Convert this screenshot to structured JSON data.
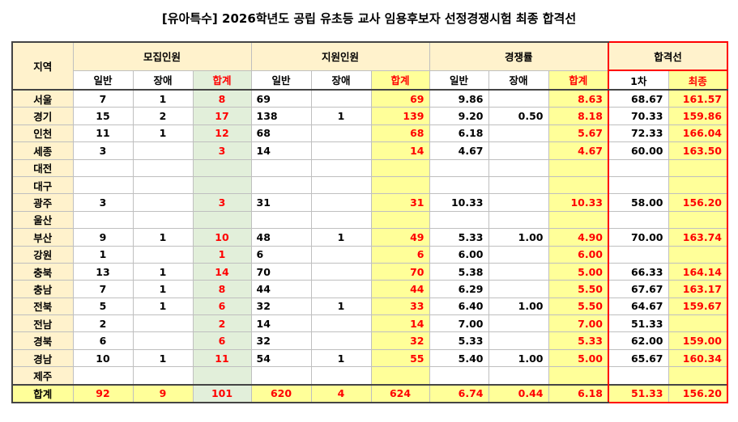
{
  "title": "[유아특수] 2026학년도 공립 유초등 교사 임용후보자 선정경쟁시험 최종 합격선",
  "header": {
    "region": "지역",
    "groups": [
      "모집인원",
      "지원인원",
      "경쟁률",
      "합격선"
    ],
    "sub": [
      "일반",
      "장애",
      "합계",
      "일반",
      "장애",
      "합계",
      "일반",
      "장애",
      "합계",
      "1차",
      "최종"
    ]
  },
  "rows": [
    [
      "서울",
      "7",
      "1",
      "8",
      "69",
      "",
      "69",
      "9.86",
      "",
      "8.63",
      "68.67",
      "161.57"
    ],
    [
      "경기",
      "15",
      "2",
      "17",
      "138",
      "1",
      "139",
      "9.20",
      "0.50",
      "8.18",
      "70.33",
      "159.86"
    ],
    [
      "인천",
      "11",
      "1",
      "12",
      "68",
      "",
      "68",
      "6.18",
      "",
      "5.67",
      "72.33",
      "166.04"
    ],
    [
      "세종",
      "3",
      "",
      "3",
      "14",
      "",
      "14",
      "4.67",
      "",
      "4.67",
      "60.00",
      "163.50"
    ],
    [
      "대전",
      "",
      "",
      "",
      "",
      "",
      "",
      "",
      "",
      "",
      "",
      ""
    ],
    [
      "대구",
      "",
      "",
      "",
      "",
      "",
      "",
      "",
      "",
      "",
      "",
      ""
    ],
    [
      "광주",
      "3",
      "",
      "3",
      "31",
      "",
      "31",
      "10.33",
      "",
      "10.33",
      "58.00",
      "156.20"
    ],
    [
      "울산",
      "",
      "",
      "",
      "",
      "",
      "",
      "",
      "",
      "",
      "",
      ""
    ],
    [
      "부산",
      "9",
      "1",
      "10",
      "48",
      "1",
      "49",
      "5.33",
      "1.00",
      "4.90",
      "70.00",
      "163.74"
    ],
    [
      "강원",
      "1",
      "",
      "1",
      "6",
      "",
      "6",
      "6.00",
      "",
      "6.00",
      "",
      ""
    ],
    [
      "충북",
      "13",
      "1",
      "14",
      "70",
      "",
      "70",
      "5.38",
      "",
      "5.00",
      "66.33",
      "164.14"
    ],
    [
      "충남",
      "7",
      "1",
      "8",
      "44",
      "",
      "44",
      "6.29",
      "",
      "5.50",
      "67.67",
      "163.17"
    ],
    [
      "전북",
      "5",
      "1",
      "6",
      "32",
      "1",
      "33",
      "6.40",
      "1.00",
      "5.50",
      "64.67",
      "159.67"
    ],
    [
      "전남",
      "2",
      "",
      "2",
      "14",
      "",
      "14",
      "7.00",
      "",
      "7.00",
      "51.33",
      ""
    ],
    [
      "경북",
      "6",
      "",
      "6",
      "32",
      "",
      "32",
      "5.33",
      "",
      "5.33",
      "62.00",
      "159.00"
    ],
    [
      "경남",
      "10",
      "1",
      "11",
      "54",
      "1",
      "55",
      "5.40",
      "1.00",
      "5.00",
      "65.67",
      "160.34"
    ],
    [
      "제주",
      "",
      "",
      "",
      "",
      "",
      "",
      "",
      "",
      "",
      "",
      ""
    ]
  ],
  "total": [
    "합계",
    "92",
    "9",
    "101",
    "620",
    "4",
    "624",
    "6.74",
    "0.44",
    "6.18",
    "51.33",
    "156.20"
  ]
}
